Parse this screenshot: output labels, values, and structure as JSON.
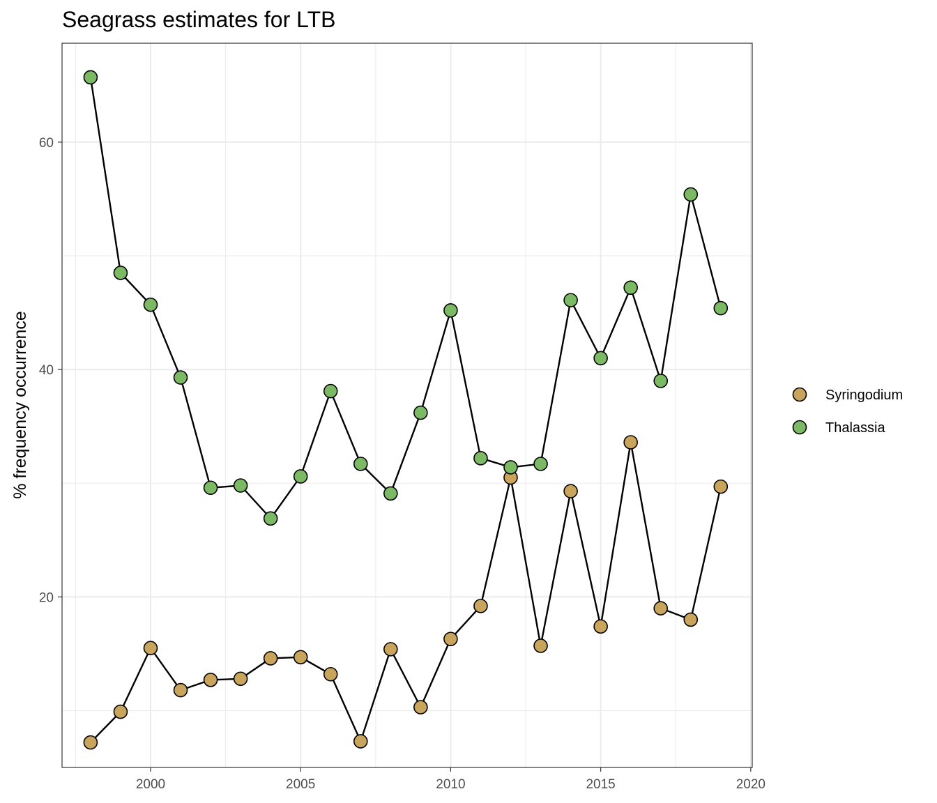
{
  "chart_data": {
    "type": "line",
    "title": "Seagrass estimates for LTB",
    "xlabel": "",
    "ylabel": "% frequency occurrence",
    "xlim": [
      1997.05,
      2020.05
    ],
    "ylim": [
      5.0,
      68.7
    ],
    "x_ticks": [
      2000,
      2005,
      2010,
      2015,
      2020
    ],
    "x_tick_labels": [
      "2000",
      "2005",
      "2010",
      "2015",
      "2020"
    ],
    "y_ticks": [
      20,
      40,
      60
    ],
    "y_tick_labels": [
      "20",
      "40",
      "60"
    ],
    "grid": true,
    "legend_position": "right",
    "series": [
      {
        "name": "Syringodium",
        "color": "#c9a45c",
        "x": [
          1998,
          1999,
          2000,
          2001,
          2002,
          2003,
          2004,
          2005,
          2006,
          2007,
          2008,
          2009,
          2010,
          2011,
          2012,
          2013,
          2014,
          2015,
          2016,
          2017,
          2018,
          2019
        ],
        "y": [
          7.2,
          9.9,
          15.5,
          11.8,
          12.7,
          12.8,
          14.6,
          14.7,
          13.2,
          7.3,
          15.4,
          10.3,
          16.3,
          19.2,
          30.5,
          15.7,
          29.3,
          17.4,
          33.6,
          19.0,
          18.0,
          29.7
        ]
      },
      {
        "name": "Thalassia",
        "color": "#7cb964",
        "x": [
          1998,
          1999,
          2000,
          2001,
          2002,
          2003,
          2004,
          2005,
          2006,
          2007,
          2008,
          2009,
          2010,
          2011,
          2012,
          2013,
          2014,
          2015,
          2016,
          2017,
          2018,
          2019
        ],
        "y": [
          65.7,
          48.5,
          45.7,
          39.3,
          29.6,
          29.8,
          26.9,
          30.6,
          38.1,
          31.7,
          29.1,
          36.2,
          45.2,
          32.2,
          31.4,
          31.7,
          46.1,
          41.0,
          47.2,
          39.0,
          55.4,
          45.4
        ]
      }
    ]
  }
}
